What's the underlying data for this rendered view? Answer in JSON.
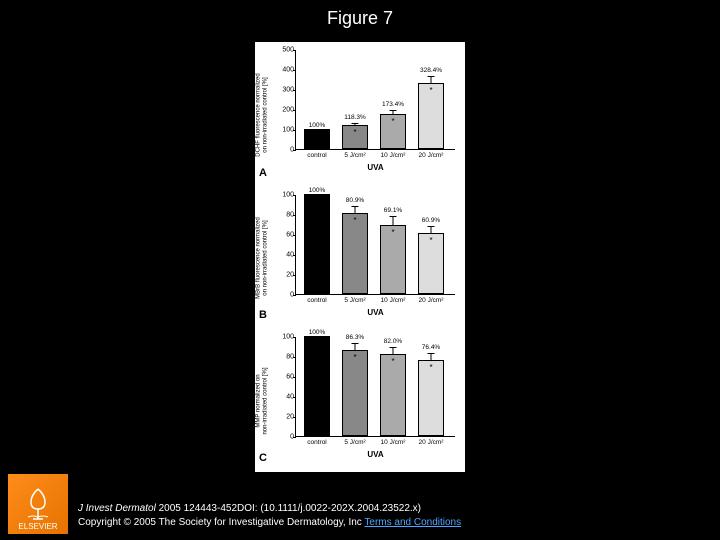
{
  "title": "Figure 7",
  "figure": {
    "background_color": "#ffffff",
    "panels": [
      {
        "letter": "A",
        "y_label": "DCHF fluorescence normalized\non non-irradiated control [%]",
        "y_range": [
          0,
          500
        ],
        "y_ticks": [
          0,
          100,
          200,
          300,
          400,
          500
        ],
        "x_label": "UVA",
        "categories": [
          "control",
          "5 J/cm²",
          "10 J/cm²",
          "20 J/cm²"
        ],
        "bars": [
          {
            "value": 100,
            "color": "#000000",
            "label": "100%",
            "star": false,
            "err": 0
          },
          {
            "value": 118.3,
            "color": "#888888",
            "label": "118.3%",
            "star": true,
            "err": 15
          },
          {
            "value": 173.4,
            "color": "#aaaaaa",
            "label": "173.4%",
            "star": true,
            "err": 25
          },
          {
            "value": 328.4,
            "color": "#dddddd",
            "label": "328.4%",
            "star": true,
            "err": 40
          }
        ]
      },
      {
        "letter": "B",
        "y_label": "MBrB fluorescence normalized\non non-irradiated control [%]",
        "y_range": [
          0,
          100
        ],
        "y_ticks": [
          0,
          20,
          40,
          60,
          80,
          100
        ],
        "x_label": "UVA",
        "categories": [
          "control",
          "5 J/cm²",
          "10 J/cm²",
          "20 J/cm²"
        ],
        "bars": [
          {
            "value": 100,
            "color": "#000000",
            "label": "100%",
            "star": false,
            "err": 0
          },
          {
            "value": 80.9,
            "color": "#888888",
            "label": "80.9%",
            "star": true,
            "err": 8
          },
          {
            "value": 69.1,
            "color": "#aaaaaa",
            "label": "69.1%",
            "star": true,
            "err": 10
          },
          {
            "value": 60.9,
            "color": "#dddddd",
            "label": "60.9%",
            "star": true,
            "err": 8
          }
        ]
      },
      {
        "letter": "C",
        "y_label": "MMP normalized on\nnon-irradiated control [%]",
        "y_range": [
          0,
          100
        ],
        "y_ticks": [
          0,
          20,
          40,
          60,
          80,
          100
        ],
        "x_label": "UVA",
        "categories": [
          "control",
          "5 J/cm²",
          "10 J/cm²",
          "20 J/cm²"
        ],
        "bars": [
          {
            "value": 100,
            "color": "#000000",
            "label": "100%",
            "star": false,
            "err": 0
          },
          {
            "value": 86.3,
            "color": "#888888",
            "label": "86.3%",
            "star": true,
            "err": 8
          },
          {
            "value": 82.0,
            "color": "#aaaaaa",
            "label": "82.0%",
            "star": true,
            "err": 8
          },
          {
            "value": 76.4,
            "color": "#dddddd",
            "label": "76.4%",
            "star": true,
            "err": 8
          }
        ]
      }
    ]
  },
  "footer": {
    "line1_prefix": "J Invest Dermatol",
    "line1_rest": " 2005 124443-452DOI: (10.1111/j.0022-202X.2004.23522.x)",
    "line2_prefix": "Copyright © 2005 The Society for Investigative Dermatology, Inc ",
    "line2_link": "Terms and Conditions"
  },
  "logo": {
    "text": "ELSEVIER"
  }
}
